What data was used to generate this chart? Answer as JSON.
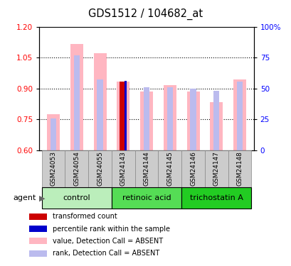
{
  "title": "GDS1512 / 104682_at",
  "samples": [
    "GSM24053",
    "GSM24054",
    "GSM24055",
    "GSM24143",
    "GSM24144",
    "GSM24145",
    "GSM24146",
    "GSM24147",
    "GSM24148"
  ],
  "pink_bar_values": [
    0.776,
    1.115,
    1.07,
    0.935,
    0.885,
    0.915,
    0.885,
    0.835,
    0.945
  ],
  "blue_bar_values": [
    0.755,
    1.062,
    0.945,
    0.935,
    0.905,
    0.905,
    0.9,
    0.89,
    0.935
  ],
  "dark_red_bar_value": 0.932,
  "dark_red_bar_index": 3,
  "dark_blue_bar_value": 0.937,
  "dark_blue_bar_index": 3,
  "ylim_left": [
    0.6,
    1.2
  ],
  "ylim_right": [
    0,
    100
  ],
  "yticks_left": [
    0.6,
    0.75,
    0.9,
    1.05,
    1.2
  ],
  "yticks_right": [
    0,
    25,
    50,
    75,
    100
  ],
  "ytick_right_labels": [
    "0",
    "25",
    "50",
    "75",
    "100%"
  ],
  "hgrid_values": [
    0.75,
    0.9,
    1.05
  ],
  "group_labels": [
    "control",
    "retinoic acid",
    "trichostatin A"
  ],
  "group_ranges": [
    [
      0,
      2
    ],
    [
      3,
      5
    ],
    [
      6,
      8
    ]
  ],
  "group_colors": [
    "#AAEAAA",
    "#44DD44",
    "#22CC22"
  ],
  "legend_colors": [
    "#CC0000",
    "#0000CC",
    "#FFB6C1",
    "#BBBBEE"
  ],
  "legend_labels": [
    "transformed count",
    "percentile rank within the sample",
    "value, Detection Call = ABSENT",
    "rank, Detection Call = ABSENT"
  ],
  "bar_width": 0.55,
  "sample_box_color": "#CCCCCC",
  "agent_label": "agent"
}
